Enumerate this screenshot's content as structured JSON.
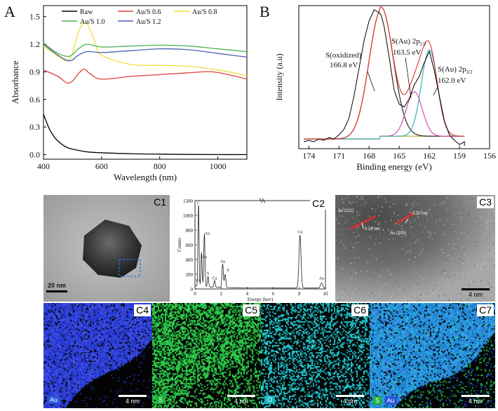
{
  "panels": {
    "A": {
      "label": "A",
      "chart_data": {
        "type": "line",
        "xlabel": "Wavelength (nm)",
        "ylabel": "Absorbance",
        "xlim": [
          400,
          1100
        ],
        "ylim": [
          -0.05,
          1.62
        ],
        "xticks": [
          400,
          600,
          800,
          1000
        ],
        "yticks": [
          0.0,
          0.3,
          0.6,
          0.9,
          1.2,
          1.5
        ],
        "ytick_labels": [
          "0.0",
          "0.3",
          "0.6",
          "0.9",
          "1.2",
          "1.5"
        ],
        "legend_position": "top",
        "series": [
          {
            "name": "Raw",
            "color": "#000000",
            "x": [
              400,
              420,
              440,
              460,
              480,
              500,
              550,
              600,
              700,
              800,
              900,
              1000,
              1100
            ],
            "y": [
              0.44,
              0.28,
              0.18,
              0.12,
              0.08,
              0.06,
              0.03,
              0.02,
              0.01,
              0.005,
              0.002,
              0.0,
              0.0
            ]
          },
          {
            "name": "Au/S  0.6",
            "color": "#e0413a",
            "x": [
              400,
              450,
              480,
              500,
              520,
              540,
              560,
              600,
              700,
              800,
              900,
              980,
              1050,
              1100
            ],
            "y": [
              0.92,
              0.85,
              0.78,
              0.8,
              0.88,
              0.93,
              0.88,
              0.82,
              0.85,
              0.87,
              0.89,
              0.9,
              0.86,
              0.82
            ]
          },
          {
            "name": "Au/S  0.8",
            "color": "#f2dc3a",
            "x": [
              400,
              450,
              480,
              500,
              515,
              530,
              545,
              560,
              580,
              600,
              700,
              800,
              900,
              1000,
              1100
            ],
            "y": [
              1.18,
              1.07,
              1.02,
              1.1,
              1.28,
              1.4,
              1.44,
              1.36,
              1.2,
              1.08,
              0.98,
              0.97,
              0.96,
              0.92,
              0.86
            ]
          },
          {
            "name": "Au/S  1.0",
            "color": "#4caf50",
            "x": [
              400,
              450,
              490,
              520,
              550,
              600,
              700,
              800,
              900,
              1000,
              1100
            ],
            "y": [
              1.21,
              1.1,
              1.07,
              1.15,
              1.2,
              1.17,
              1.18,
              1.19,
              1.18,
              1.15,
              1.12
            ]
          },
          {
            "name": "Au/S  1.2",
            "color": "#4d5fb3",
            "x": [
              400,
              450,
              490,
              520,
              550,
              600,
              700,
              800,
              900,
              1000,
              1100
            ],
            "y": [
              1.2,
              1.08,
              1.02,
              1.08,
              1.12,
              1.11,
              1.13,
              1.15,
              1.14,
              1.1,
              1.06
            ]
          }
        ]
      }
    },
    "B": {
      "label": "B",
      "chart_data": {
        "type": "line",
        "xlabel": "Binding energy (eV)",
        "ylabel": "Intensity (a.u)",
        "xlim": [
          175,
          156
        ],
        "ylim": [
          0,
          1.0
        ],
        "xticks": [
          174,
          171,
          168,
          165,
          162,
          159,
          156
        ],
        "annotations": [
          {
            "lines": [
              "S(oxidized)",
              "166.8 eV"
            ]
          },
          {
            "lines": [
              "S(Au) 2p",
              "163.5 eV"
            ],
            "subscript": "1/2"
          },
          {
            "lines": [
              "S(Au) 2p",
              "162.0 eV"
            ],
            "subscript": "3/2"
          }
        ],
        "series": [
          {
            "role": "raw",
            "color": "#000000",
            "x": [
              174.5,
              174,
              173.5,
              173,
              172.5,
              172,
              171.5,
              171,
              170.5,
              170,
              169.5,
              169,
              168.5,
              168,
              167.5,
              167,
              166.8,
              166.5,
              166,
              165.5,
              165,
              164.5,
              164,
              163.5,
              163,
              162.5,
              162,
              161.5,
              161,
              160.5,
              160,
              159.5,
              159,
              158.5,
              158.5
            ],
            "y": [
              0.05,
              0.06,
              0.05,
              0.07,
              0.06,
              0.08,
              0.07,
              0.1,
              0.14,
              0.22,
              0.38,
              0.58,
              0.78,
              0.92,
              1.0,
              0.98,
              0.96,
              0.88,
              0.66,
              0.42,
              0.32,
              0.3,
              0.36,
              0.46,
              0.52,
              0.62,
              0.7,
              0.56,
              0.38,
              0.2,
              0.1,
              0.06,
              0.03,
              0.05,
              0.02
            ]
          },
          {
            "role": "oxidized-fit",
            "color": "#2c2c2c",
            "peak": 166.8,
            "height": 0.93,
            "width": 1.2
          },
          {
            "role": "2p1/2-fit",
            "color": "#d94fb0",
            "peak": 163.5,
            "height": 0.32,
            "width": 0.8
          },
          {
            "role": "2p3/2-fit",
            "color": "#3bb3b3",
            "peak": 162.0,
            "height": 0.62,
            "width": 0.8
          },
          {
            "role": "envelope",
            "color": "#e0413a"
          },
          {
            "role": "background",
            "color": "#c8b84a"
          }
        ]
      }
    },
    "C1": {
      "label": "C1",
      "scalebar": "20 nm"
    },
    "C2": {
      "label": "C2",
      "chart_data": {
        "type": "line",
        "xlabel": "Energy (kev)",
        "ylabel": "Counts",
        "xlim": [
          0,
          10
        ],
        "ylim": [
          0,
          1200
        ],
        "xticks": [
          0,
          2,
          4,
          6,
          8,
          10
        ],
        "xtick_labels": [
          "0",
          "2",
          "4",
          "6",
          "8",
          "10"
        ],
        "yticks": [
          0,
          200,
          400,
          600,
          800,
          1000,
          1200
        ],
        "peaks": [
          {
            "label": "C",
            "energy": 0.27,
            "counts": 1120
          },
          {
            "label": "Au",
            "energy": 0.5,
            "counts": 400
          },
          {
            "label": "Au",
            "energy": 0.72,
            "counts": 720
          },
          {
            "label": "S",
            "energy": 1.0,
            "counts": 140
          },
          {
            "label": "O",
            "energy": 0.52,
            "counts": 70
          },
          {
            "label": "Cu",
            "energy": 1.5,
            "counts": 90
          },
          {
            "label": "Au",
            "energy": 2.12,
            "counts": 320
          },
          {
            "label": "Cu",
            "energy": 8.05,
            "counts": 720
          },
          {
            "label": "Au",
            "energy": 9.7,
            "counts": 70
          },
          {
            "label": "S",
            "energy": 2.31,
            "counts": 180
          }
        ]
      }
    },
    "C3": {
      "label": "C3",
      "scalebar": "4 nm",
      "annotations": [
        "Au (111)",
        "0.24 nm",
        "0.20 nm",
        "Au (200)"
      ]
    },
    "C4": {
      "label": "C4",
      "element": "Au",
      "scalebar": "4 nm",
      "color": "#2a3bd0"
    },
    "C5": {
      "label": "C5",
      "element": "S",
      "scalebar": "4 nm",
      "color": "#22c43a"
    },
    "C6": {
      "label": "C6",
      "element": "O",
      "scalebar": "4 nm",
      "color": "#19c2c8"
    },
    "C7": {
      "label": "C7",
      "elements": [
        "S",
        "Au"
      ],
      "scalebar": "4 nm"
    }
  }
}
